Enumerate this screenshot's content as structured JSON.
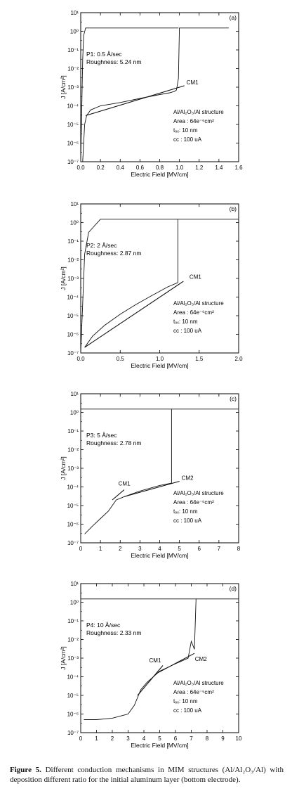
{
  "figure": {
    "caption_label": "Figure 5.",
    "caption_text": " Different conduction mechanisms in MIM structures (Al/Al₂O₃/Al) with deposition different ratio for the initial aluminum layer (bottom electrode)."
  },
  "chart_data": [
    {
      "type": "line",
      "panel_label": "(a)",
      "xlabel": "Electric Field [MV/cm]",
      "ylabel": "J [A/cm²]",
      "xlim": [
        0.0,
        1.6
      ],
      "ylim_log10": [
        -7,
        1
      ],
      "x_ticks": [
        "0.0",
        "0.2",
        "0.4",
        "0.6",
        "0.8",
        "1.0",
        "1.2",
        "1.4",
        "1.6"
      ],
      "y_ticks": [
        "10⁻⁷",
        "10⁻⁶",
        "10⁻⁵",
        "10⁻⁴",
        "10⁻³",
        "10⁻²",
        "10⁻¹",
        "10⁰",
        "10¹"
      ],
      "text_top": [
        "P1: 0.5 Å/sec",
        "Roughness: 5.24 nm"
      ],
      "text_right": [
        "Al/Al₂O₃/Al structure",
        "Area : 64e⁻⁶cm²",
        "tₒₓ: 10 nm",
        "cc : 100 uA"
      ],
      "fit_labels": [
        {
          "text": "CM1",
          "x": 1.05,
          "y": 0.0012
        }
      ],
      "series": [
        {
          "role": "iv-curve",
          "points": [
            [
              0.02,
              1e-07
            ],
            [
              0.03,
              1e-06
            ],
            [
              0.04,
              1e-05
            ],
            [
              0.06,
              3e-05
            ],
            [
              0.1,
              6e-05
            ],
            [
              0.2,
              0.0001
            ],
            [
              0.4,
              0.00015
            ],
            [
              0.6,
              0.00025
            ],
            [
              0.8,
              0.0004
            ],
            [
              0.9,
              0.0005
            ],
            [
              0.95,
              0.0006
            ],
            [
              0.97,
              0.0007
            ],
            [
              0.99,
              0.003
            ],
            [
              1.0,
              1.5
            ],
            [
              1.5,
              1.5
            ]
          ]
        },
        {
          "role": "compliance-left",
          "points": [
            [
              0.0,
              1e-07
            ],
            [
              0.02,
              0.03
            ],
            [
              0.03,
              0.6
            ],
            [
              0.05,
              1.5
            ],
            [
              0.99,
              1.5
            ]
          ]
        },
        {
          "role": "fit-CM1",
          "points": [
            [
              0.05,
              3e-05
            ],
            [
              1.05,
              0.0012
            ]
          ]
        }
      ]
    },
    {
      "type": "line",
      "panel_label": "(b)",
      "xlabel": "Electric Field [MV/cm]",
      "ylabel": "J [A/cm²]",
      "xlim": [
        0.0,
        2.0
      ],
      "ylim_log10": [
        -7,
        1
      ],
      "x_ticks": [
        "0.0",
        "0.5",
        "1.0",
        "1.5",
        "2.0"
      ],
      "y_ticks": [
        "10⁻⁷",
        "10⁻⁶",
        "10⁻⁵",
        "10⁻⁴",
        "10⁻³",
        "10⁻²",
        "10⁻¹",
        "10⁰",
        "10¹"
      ],
      "text_top": [
        "P2: 2 Å/sec",
        "Roughness: 2.87 nm"
      ],
      "text_right": [
        "Al/Al₂O₃/Al structure",
        "Area : 64e⁻⁶cm²",
        "tₒₓ: 10 nm",
        "cc : 100 uA"
      ],
      "fit_labels": [
        {
          "text": "CM1",
          "x": 1.35,
          "y": 0.0008
        }
      ],
      "series": [
        {
          "role": "iv-curve",
          "points": [
            [
              0.05,
              2e-07
            ],
            [
              0.15,
              8e-07
            ],
            [
              0.3,
              3e-06
            ],
            [
              0.5,
              1.2e-05
            ],
            [
              0.7,
              4e-05
            ],
            [
              0.9,
              0.00012
            ],
            [
              1.1,
              0.00035
            ],
            [
              1.23,
              0.0006
            ],
            [
              1.23,
              1.5
            ],
            [
              2.0,
              1.5
            ]
          ]
        },
        {
          "role": "compliance-left",
          "points": [
            [
              0.0,
              1e-07
            ],
            [
              0.05,
              0.02
            ],
            [
              0.1,
              0.3
            ],
            [
              0.25,
              1.5
            ],
            [
              1.23,
              1.5
            ]
          ]
        },
        {
          "role": "fit-CM1",
          "points": [
            [
              0.05,
              2e-07
            ],
            [
              1.3,
              0.0007
            ]
          ]
        }
      ]
    },
    {
      "type": "line",
      "panel_label": "(c)",
      "xlabel": "Electric Field [MV/cm]",
      "ylabel": "J [A/cm²]",
      "xlim": [
        0,
        8
      ],
      "ylim_log10": [
        -7,
        1
      ],
      "x_ticks": [
        "0",
        "1",
        "2",
        "3",
        "4",
        "5",
        "6",
        "7",
        "8"
      ],
      "y_ticks": [
        "10⁻⁷",
        "10⁻⁶",
        "10⁻⁵",
        "10⁻⁴",
        "10⁻³",
        "10⁻²",
        "10⁻¹",
        "10⁰",
        "10¹"
      ],
      "text_top": [
        "P3: 5 Å/sec",
        "Roughness: 2.78 nm"
      ],
      "text_right": [
        "Al/Al₂O₃/Al structure",
        "Area : 64e⁻⁶cm²",
        "tₒₓ: 10 nm",
        "cc : 100 uA"
      ],
      "fit_labels": [
        {
          "text": "CM1",
          "x": 1.8,
          "y": 0.0001
        },
        {
          "text": "CM2",
          "x": 5.0,
          "y": 0.0002
        }
      ],
      "series": [
        {
          "role": "iv-curve",
          "points": [
            [
              0.2,
              3e-07
            ],
            [
              0.6,
              8e-07
            ],
            [
              1.0,
              2e-06
            ],
            [
              1.4,
              5e-06
            ],
            [
              1.8,
              2e-05
            ],
            [
              2.2,
              3e-05
            ],
            [
              3.0,
              6e-05
            ],
            [
              4.0,
              0.00012
            ],
            [
              4.6,
              0.00016
            ],
            [
              4.6,
              1.5
            ],
            [
              8.0,
              1.5
            ]
          ]
        },
        {
          "role": "compliance-left",
          "points": [
            [
              0.0,
              1e-07
            ],
            [
              0.0,
              1.5
            ],
            [
              4.6,
              1.5
            ]
          ]
        },
        {
          "role": "fit-CM1",
          "points": [
            [
              1.6,
              2e-05
            ],
            [
              2.2,
              7e-05
            ]
          ]
        },
        {
          "role": "fit-CM2",
          "points": [
            [
              2.2,
              3e-05
            ],
            [
              5.0,
              0.0002
            ]
          ]
        }
      ]
    },
    {
      "type": "line",
      "panel_label": "(d)",
      "xlabel": "Electric Field [MV/cm]",
      "ylabel": "J [A/cm²]",
      "xlim": [
        0,
        10
      ],
      "ylim_log10": [
        -7,
        1
      ],
      "x_ticks": [
        "0",
        "1",
        "2",
        "3",
        "4",
        "5",
        "6",
        "7",
        "8",
        "9",
        "10"
      ],
      "y_ticks": [
        "10⁻⁷",
        "10⁻⁶",
        "10⁻⁵",
        "10⁻⁴",
        "10⁻³",
        "10⁻²",
        "10⁻¹",
        "10⁰",
        "10¹"
      ],
      "text_top": [
        "P4: 10 Å/sec",
        "Roughness: 2.33 nm"
      ],
      "text_right": [
        "Al/Al₂O₃/Al structure",
        "Area : 64e⁻⁶cm²",
        "tₒₓ: 10 nm",
        "cc : 100 uA"
      ],
      "fit_labels": [
        {
          "text": "CM1",
          "x": 4.2,
          "y": 0.0005
        },
        {
          "text": "CM2",
          "x": 7.1,
          "y": 0.0006
        }
      ],
      "series": [
        {
          "role": "iv-curve",
          "points": [
            [
              0.2,
              5e-07
            ],
            [
              1.0,
              5e-07
            ],
            [
              2.0,
              6e-07
            ],
            [
              3.0,
              1e-06
            ],
            [
              3.4,
              3e-06
            ],
            [
              3.8,
              2e-05
            ],
            [
              4.2,
              5e-05
            ],
            [
              5.0,
              0.0002
            ],
            [
              6.0,
              0.0005
            ],
            [
              6.8,
              0.001
            ],
            [
              7.0,
              0.008
            ],
            [
              7.2,
              0.003
            ],
            [
              7.3,
              1.5
            ],
            [
              10.0,
              1.5
            ]
          ]
        },
        {
          "role": "compliance-left",
          "points": [
            [
              0.0,
              1e-07
            ],
            [
              0.0,
              1.5
            ],
            [
              7.3,
              1.5
            ]
          ]
        },
        {
          "role": "fit-CM1",
          "points": [
            [
              3.6,
              1e-05
            ],
            [
              5.2,
              0.0004
            ]
          ]
        },
        {
          "role": "fit-CM2",
          "points": [
            [
              4.8,
              0.00015
            ],
            [
              7.2,
              0.0018
            ]
          ]
        }
      ]
    }
  ]
}
